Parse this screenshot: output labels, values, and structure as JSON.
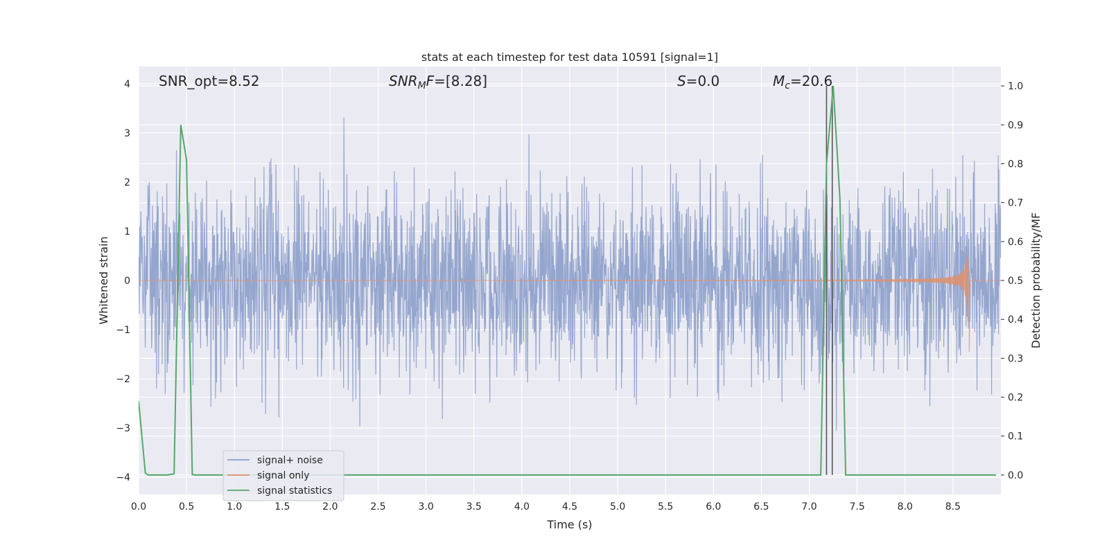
{
  "chart_data": {
    "type": "line",
    "title": "stats at each timestep for test data 10591 [signal=1]",
    "xlabel": "Time (s)",
    "ylabel_left": "Whitened strain",
    "ylabel_right": "Detection probability/MF",
    "xlim": [
      0.0,
      9.0
    ],
    "ylim_left": [
      -4.35,
      4.35
    ],
    "ylim_right": [
      -0.05,
      1.05
    ],
    "x_ticks": [
      "0.0",
      "0.5",
      "1.0",
      "1.5",
      "2.0",
      "2.5",
      "3.0",
      "3.5",
      "4.0",
      "4.5",
      "5.0",
      "5.5",
      "6.0",
      "6.5",
      "7.0",
      "7.5",
      "8.0",
      "8.5"
    ],
    "y_ticks_left": [
      "−4",
      "−3",
      "−2",
      "−1",
      "0",
      "1",
      "2",
      "3",
      "4"
    ],
    "y_ticks_right": [
      "0.0",
      "0.1",
      "0.2",
      "0.3",
      "0.4",
      "0.5",
      "0.6",
      "0.7",
      "0.8",
      "0.9",
      "1.0"
    ],
    "grid": true,
    "legend_placement": "lower-left",
    "annotations": [
      {
        "text": "SNR_opt=8.52",
        "x": 0.2
      },
      {
        "text": "SNR_MF=[8.28]",
        "x": 2.6
      },
      {
        "text": "S=0.0",
        "x": 5.6
      },
      {
        "text": "M_c=20.6",
        "x": 6.6
      }
    ],
    "series": [
      {
        "name": "signal+ noise",
        "color": "#8c9fca",
        "axis": "left",
        "kind": "noise",
        "std": 0.75,
        "x_range": [
          0.0,
          9.0
        ]
      },
      {
        "name": "signal only",
        "color": "#e0916b",
        "axis": "left",
        "kind": "chirp",
        "x_range": [
          4.0,
          8.67
        ],
        "peak_amplitude": 1.8
      },
      {
        "name": "signal statistics",
        "color": "#55a868",
        "axis": "right",
        "x": [
          0.0,
          0.07,
          0.1,
          0.2,
          0.3,
          0.37,
          0.44,
          0.5,
          0.56,
          0.6,
          7.12,
          7.18,
          7.25,
          7.32,
          7.38,
          7.45,
          8.95
        ],
        "y": [
          0.19,
          0.005,
          0.0,
          0.0,
          0.0,
          0.003,
          0.9,
          0.81,
          0.001,
          0.0,
          0.0,
          0.8,
          1.0,
          0.71,
          0.0,
          0.0,
          0.0
        ]
      }
    ],
    "vlines": [
      {
        "x": 7.18,
        "color": "#555555"
      },
      {
        "x": 7.24,
        "color": "#555555"
      }
    ]
  }
}
